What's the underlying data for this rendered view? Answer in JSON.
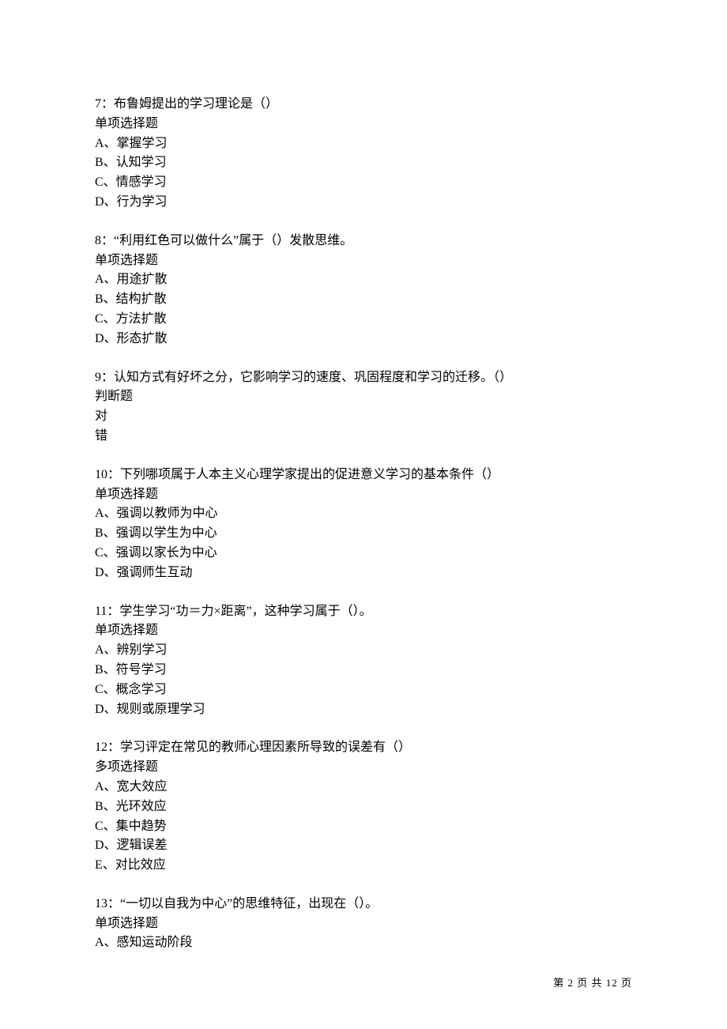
{
  "page": {
    "background_color": "#ffffff",
    "text_color": "#000000",
    "font_family": "SimSun",
    "body_fontsize": 16,
    "footer_fontsize": 13
  },
  "questions": [
    {
      "number": "7",
      "text": "7：布鲁姆提出的学习理论是（）",
      "type": "单项选择题",
      "options": [
        "A、掌握学习",
        "B、认知学习",
        "C、情感学习",
        "D、行为学习"
      ]
    },
    {
      "number": "8",
      "text": "8：“利用红色可以做什么”属于（）发散思维。",
      "type": "单项选择题",
      "options": [
        "A、用途扩散",
        "B、结构扩散",
        "C、方法扩散",
        "D、形态扩散"
      ]
    },
    {
      "number": "9",
      "text": "9：认知方式有好坏之分，它影响学习的速度、巩固程度和学习的迁移。（）",
      "type": "判断题",
      "options": [
        "对",
        "错"
      ]
    },
    {
      "number": "10",
      "text": "10：下列哪项属于人本主义心理学家提出的促进意义学习的基本条件（）",
      "type": "单项选择题",
      "options": [
        "A、强调以教师为中心",
        "B、强调以学生为中心",
        "C、强调以家长为中心",
        "D、强调师生互动"
      ]
    },
    {
      "number": "11",
      "text": "11：学生学习“功＝力×距离”，这种学习属于（）。",
      "type": "单项选择题",
      "options": [
        "A、辨别学习",
        "B、符号学习",
        "C、概念学习",
        "D、规则或原理学习"
      ]
    },
    {
      "number": "12",
      "text": "12：学习评定在常见的教师心理因素所导致的误差有（）",
      "type": "多项选择题",
      "options": [
        "A、宽大效应",
        "B、光环效应",
        "C、集中趋势",
        "D、逻辑误差",
        "E、对比效应"
      ]
    },
    {
      "number": "13",
      "text": "13：“一切以自我为中心”的思维特征，出现在（）。",
      "type": "单项选择题",
      "options": [
        "A、感知运动阶段"
      ]
    }
  ],
  "footer": {
    "text": "第 2 页 共 12 页",
    "current_page": 2,
    "total_pages": 12
  }
}
